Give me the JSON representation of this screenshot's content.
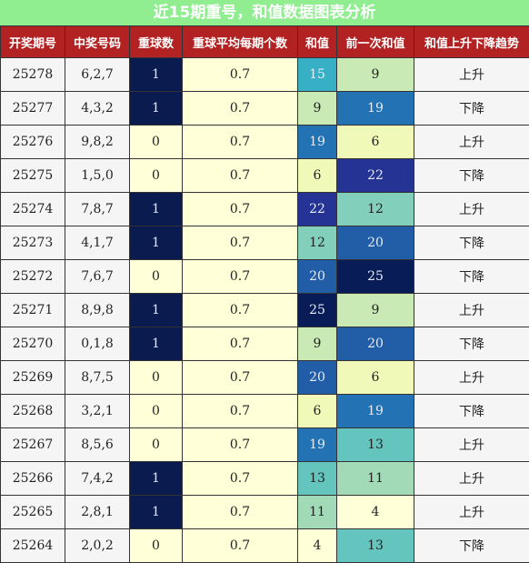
{
  "title": "近15期重号，和值数据图表分析",
  "headers": [
    "开奖期号",
    "中奖号码",
    "重球数",
    "重球平均每期个数",
    "和值",
    "前一次和值",
    "和值上升下降趋势"
  ],
  "rows": [
    {
      "period": "25278",
      "numbers": "6,2,7",
      "repeat": "1",
      "avg": "0.7",
      "sum": "15",
      "prev_sum": "9",
      "trend": "上升"
    },
    {
      "period": "25277",
      "numbers": "4,3,2",
      "repeat": "1",
      "avg": "0.7",
      "sum": "9",
      "prev_sum": "19",
      "trend": "下降"
    },
    {
      "period": "25276",
      "numbers": "9,8,2",
      "repeat": "0",
      "avg": "0.7",
      "sum": "19",
      "prev_sum": "6",
      "trend": "上升"
    },
    {
      "period": "25275",
      "numbers": "1,5,0",
      "repeat": "0",
      "avg": "0.7",
      "sum": "6",
      "prev_sum": "22",
      "trend": "下降"
    },
    {
      "period": "25274",
      "numbers": "7,8,7",
      "repeat": "1",
      "avg": "0.7",
      "sum": "22",
      "prev_sum": "12",
      "trend": "上升"
    },
    {
      "period": "25273",
      "numbers": "4,1,7",
      "repeat": "1",
      "avg": "0.7",
      "sum": "12",
      "prev_sum": "20",
      "trend": "下降"
    },
    {
      "period": "25272",
      "numbers": "7,6,7",
      "repeat": "0",
      "avg": "0.7",
      "sum": "20",
      "prev_sum": "25",
      "trend": "下降"
    },
    {
      "period": "25271",
      "numbers": "8,9,8",
      "repeat": "1",
      "avg": "0.7",
      "sum": "25",
      "prev_sum": "9",
      "trend": "上升"
    },
    {
      "period": "25270",
      "numbers": "0,1,8",
      "repeat": "1",
      "avg": "0.7",
      "sum": "9",
      "prev_sum": "20",
      "trend": "下降"
    },
    {
      "period": "25269",
      "numbers": "8,7,5",
      "repeat": "0",
      "avg": "0.7",
      "sum": "20",
      "prev_sum": "6",
      "trend": "上升"
    },
    {
      "period": "25268",
      "numbers": "3,2,1",
      "repeat": "0",
      "avg": "0.7",
      "sum": "6",
      "prev_sum": "19",
      "trend": "下降"
    },
    {
      "period": "25267",
      "numbers": "8,5,6",
      "repeat": "0",
      "avg": "0.7",
      "sum": "19",
      "prev_sum": "13",
      "trend": "上升"
    },
    {
      "period": "25266",
      "numbers": "7,4,2",
      "repeat": "1",
      "avg": "0.7",
      "sum": "13",
      "prev_sum": "11",
      "trend": "上升"
    },
    {
      "period": "25265",
      "numbers": "2,8,1",
      "repeat": "1",
      "avg": "0.7",
      "sum": "11",
      "prev_sum": "4",
      "trend": "上升"
    },
    {
      "period": "25264",
      "numbers": "2,0,2",
      "repeat": "0",
      "avg": "0.7",
      "sum": "4",
      "prev_sum": "13",
      "trend": "下降"
    }
  ],
  "colors": {
    "title_bg": "#90ee90",
    "header_bg": "#b22222",
    "repeat_one_bg": "#0a1b4f",
    "repeat_zero_bg": "#ffffd8",
    "sum_scale": {
      "4": "#ffffd8",
      "6": "#f0f9b8",
      "9": "#c9eab4",
      "11": "#a2dab8",
      "12": "#82cfbb",
      "13": "#64c4be",
      "15": "#37b0c5",
      "19": "#2272b4",
      "20": "#225ea8",
      "22": "#253494",
      "25": "#081d58"
    }
  }
}
